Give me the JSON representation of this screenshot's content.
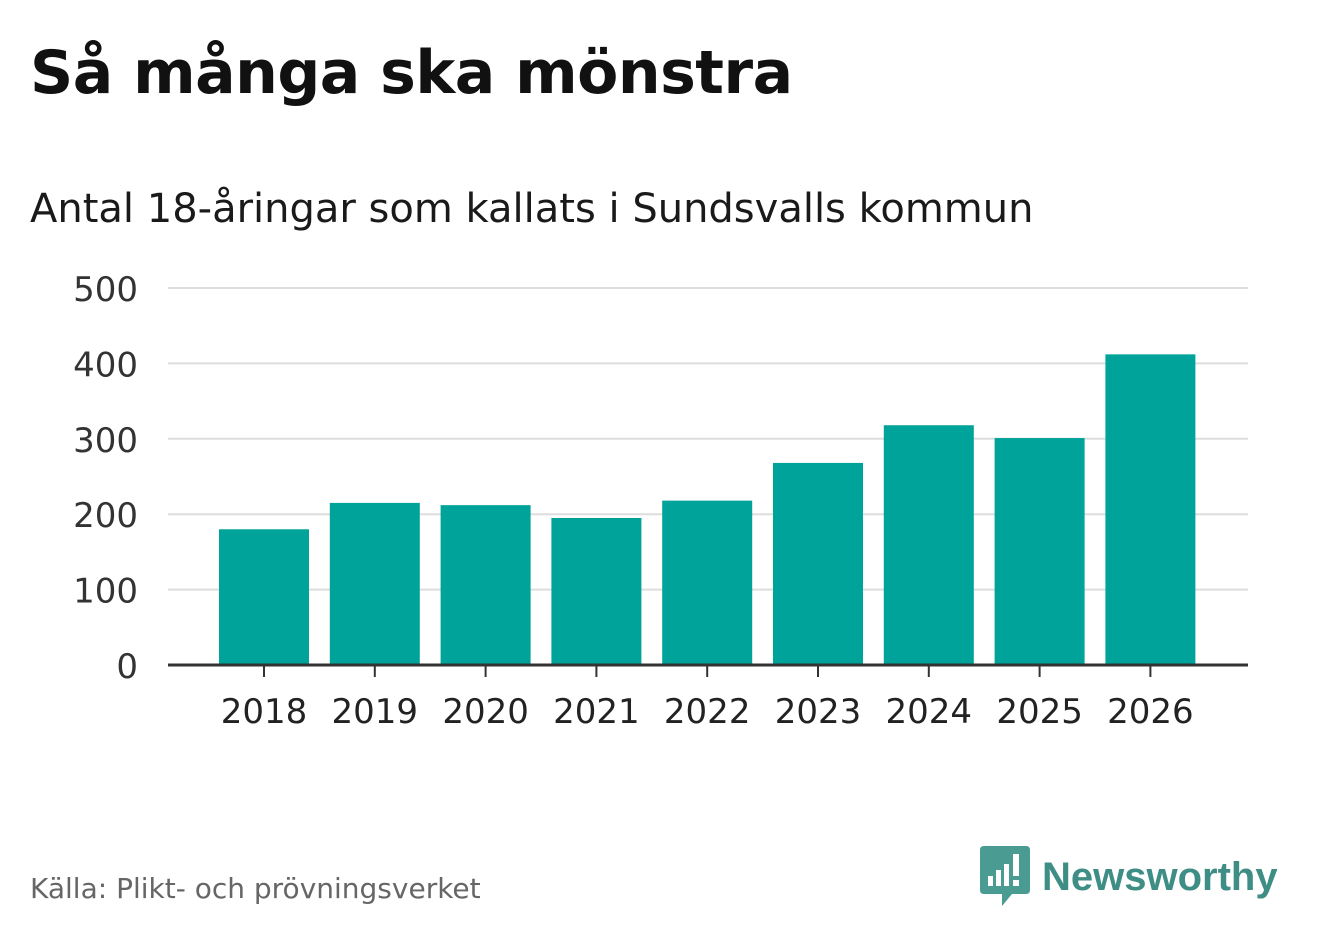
{
  "header": {
    "title": "Så många ska mönstra",
    "subtitle": "Antal 18-åringar som kallats i Sundsvalls kommun"
  },
  "footer": {
    "source": "Källa: Plikt- och prövningsverket",
    "brand": "Newsworthy",
    "brand_color": "#3e8e86"
  },
  "chart_data": {
    "type": "bar",
    "title": "Så många ska mönstra",
    "subtitle": "Antal 18-åringar som kallats i Sundsvalls kommun",
    "categories": [
      "2018",
      "2019",
      "2020",
      "2021",
      "2022",
      "2023",
      "2024",
      "2025",
      "2026"
    ],
    "values": [
      180,
      215,
      212,
      195,
      218,
      268,
      318,
      301,
      412
    ],
    "xlabel": "",
    "ylabel": "",
    "ylim": [
      0,
      500
    ],
    "yticks": [
      "0",
      "100",
      "200",
      "300",
      "400",
      "500"
    ],
    "grid": true,
    "bar_color": "#00a39a",
    "grid_color": "#dddddd",
    "axis_color": "#333333"
  }
}
